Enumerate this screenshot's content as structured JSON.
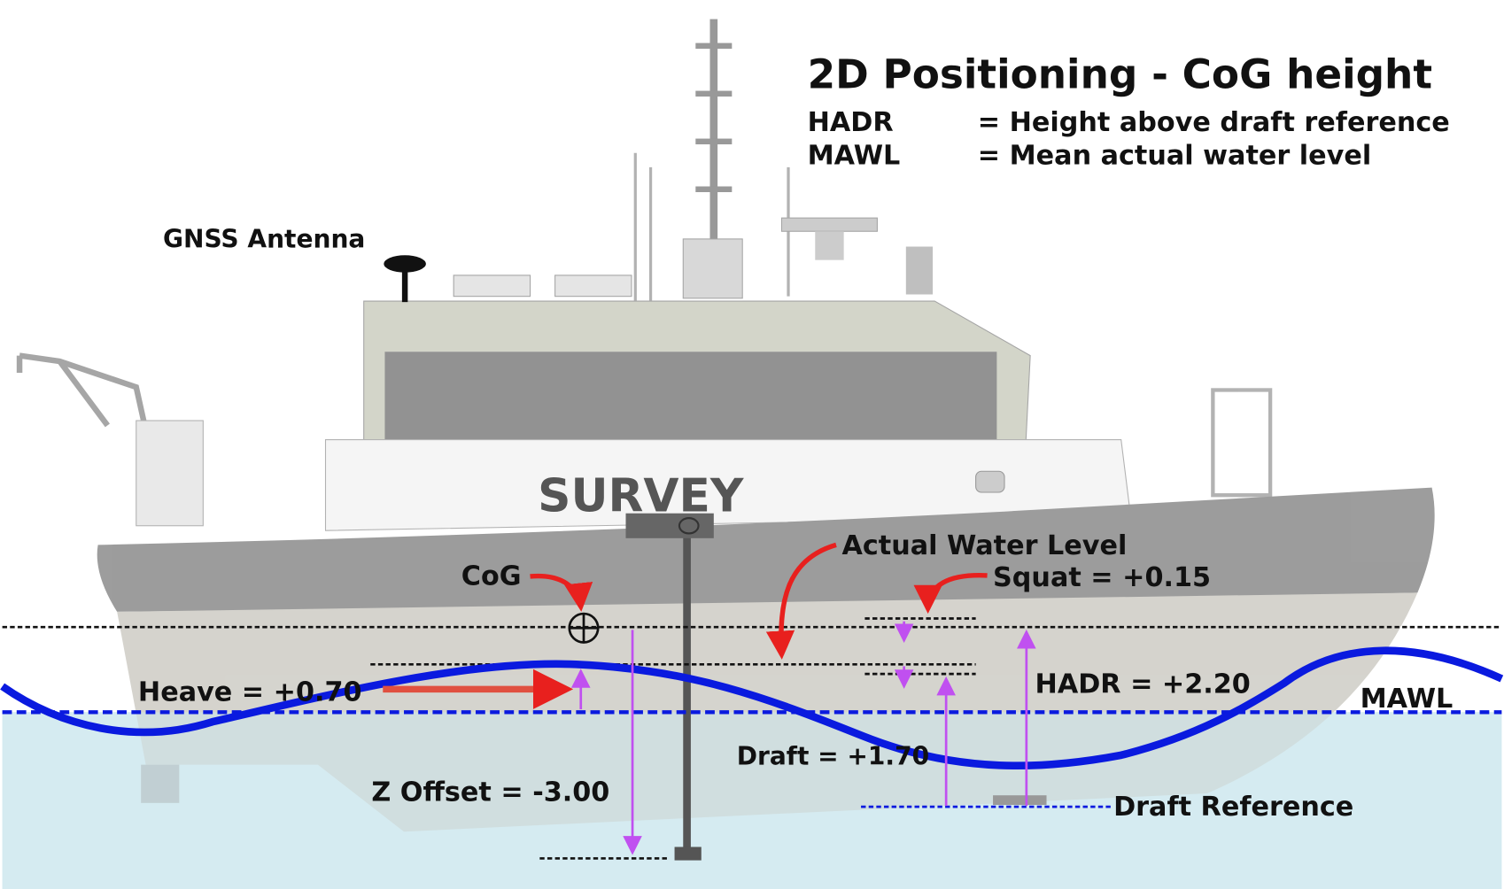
{
  "title": "2D Positioning - CoG height",
  "legend": [
    {
      "abbr": "HADR",
      "definition": "= Height above draft reference"
    },
    {
      "abbr": "MAWL",
      "definition": "= Mean actual water level"
    }
  ],
  "boat_name": "SURVEY",
  "labels": {
    "gnss": "GNSS Antenna",
    "actual_water_level": "Actual Water Level",
    "cog": "CoG",
    "squat": "Squat = +0.15",
    "heave": "Heave = +0.70",
    "hadr": "HADR = +2.20",
    "mawl": "MAWL",
    "draft": "Draft = +1.70",
    "z_offset": "Z Offset = -3.00",
    "draft_reference": "Draft Reference"
  },
  "colors": {
    "water": "#d6ebf1",
    "wave": "#0a1adf",
    "arrow_red": "#e8201e",
    "measure_purple": "#c050f0",
    "hull_grey": "#8e8e8e"
  }
}
